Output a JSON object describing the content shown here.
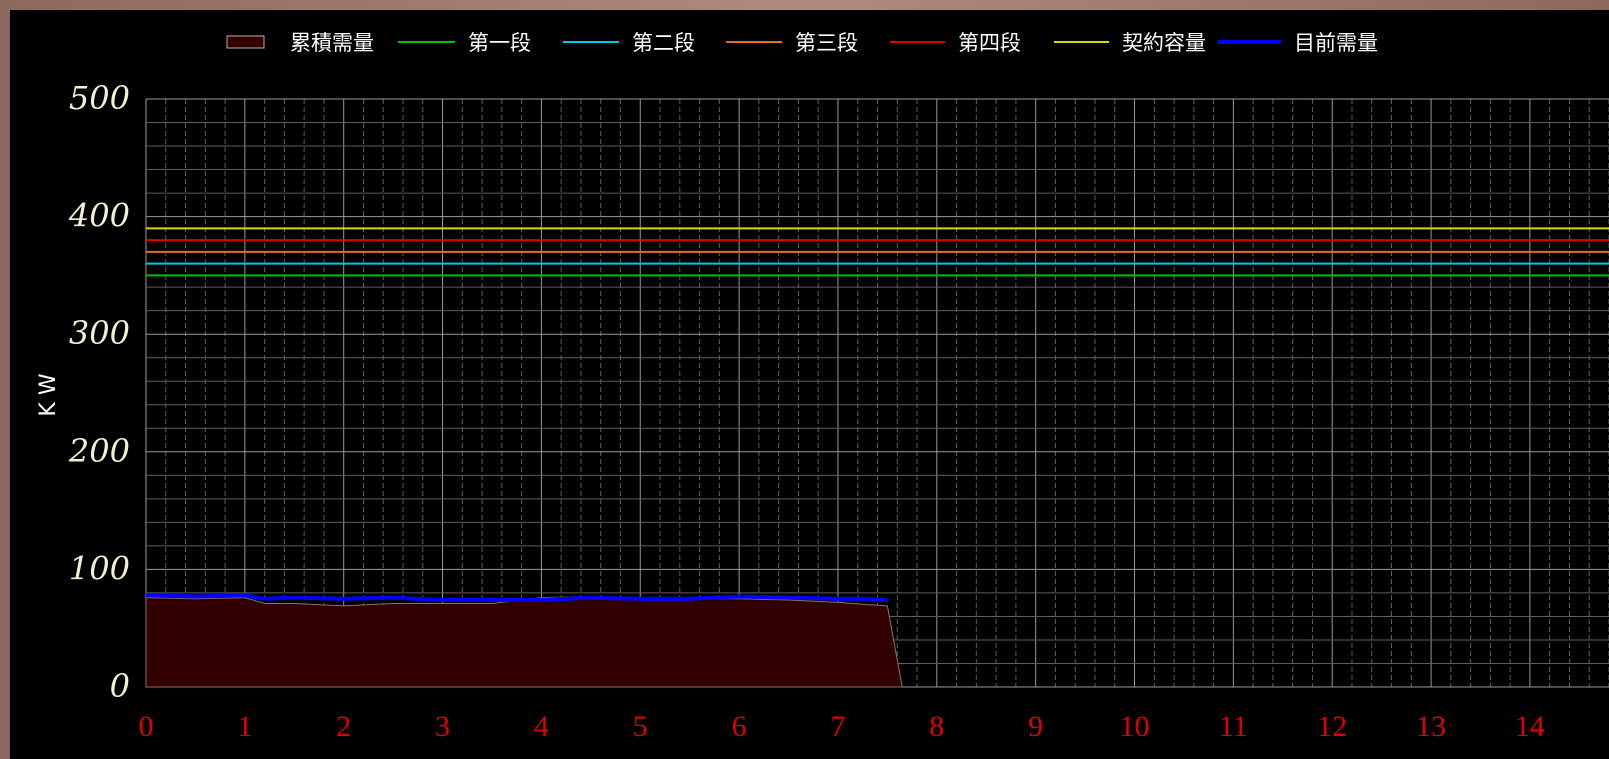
{
  "chart_data": {
    "type": "line",
    "ylabel": "K W",
    "xlabel": "",
    "title": "",
    "xlim": [
      0,
      14.8
    ],
    "ylim": [
      0,
      500
    ],
    "x_ticks": [
      0,
      1,
      2,
      3,
      4,
      5,
      6,
      7,
      8,
      9,
      10,
      11,
      12,
      13,
      14
    ],
    "y_ticks": [
      0,
      100,
      200,
      300,
      400,
      500
    ],
    "grid": true,
    "legend_position": "top",
    "series": [
      {
        "name": "累積需量",
        "kind": "area",
        "color": "#330000",
        "x": [
          0,
          0.5,
          1,
          1.2,
          1.5,
          2,
          2.5,
          3,
          3.5,
          4,
          4.5,
          5,
          5.5,
          6,
          6.5,
          7,
          7.3,
          7.5,
          7.65
        ],
        "y": [
          76,
          75,
          76,
          71,
          71,
          69,
          71,
          71,
          71,
          76,
          77,
          76,
          75,
          75,
          74,
          72,
          70,
          69,
          0
        ]
      },
      {
        "name": "第一段",
        "kind": "hline",
        "color": "#00c000",
        "y": 350
      },
      {
        "name": "第二段",
        "kind": "hline",
        "color": "#00c8e8",
        "y": 360
      },
      {
        "name": "第三段",
        "kind": "hline",
        "color": "#e07020",
        "y": 370
      },
      {
        "name": "第四段",
        "kind": "hline",
        "color": "#e00000",
        "y": 380
      },
      {
        "name": "契約容量",
        "kind": "hline",
        "color": "#d8d800",
        "y": 390
      },
      {
        "name": "目前需量",
        "kind": "line",
        "color": "#0000ff",
        "x": [
          0,
          0.5,
          1,
          1.2,
          1.5,
          2,
          2.5,
          3,
          3.5,
          4,
          4.5,
          5,
          5.5,
          6,
          6.5,
          7,
          7.3,
          7.5
        ],
        "y": [
          78,
          77,
          78,
          75,
          76,
          75,
          76,
          74,
          74,
          74,
          76,
          75,
          75,
          77,
          76,
          75,
          75,
          74
        ]
      }
    ]
  }
}
